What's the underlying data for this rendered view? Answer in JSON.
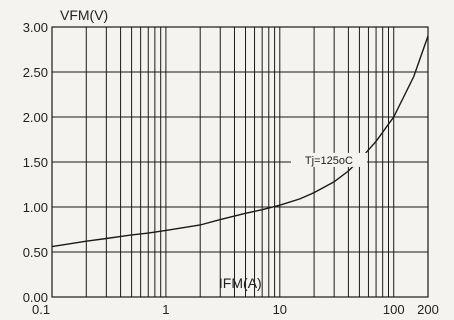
{
  "chart_data": {
    "type": "line",
    "x_scale": "log",
    "xlim": [
      0.1,
      200
    ],
    "ylim": [
      0.0,
      3.0
    ],
    "grid": true,
    "ylabel": "VFM(V)",
    "xlabel": "IFM(A)",
    "x_ticks": [
      0.1,
      1,
      10,
      100,
      200
    ],
    "x_tick_labels": [
      "0.1",
      "1",
      "10",
      "100",
      "200"
    ],
    "y_ticks": [
      0.0,
      0.5,
      1.0,
      1.5,
      2.0,
      2.5,
      3.0
    ],
    "y_tick_labels": [
      "0.00",
      "0.50",
      "1.00",
      "1.50",
      "2.00",
      "2.50",
      "3.00"
    ],
    "series": [
      {
        "name": "Tj=125oC",
        "x": [
          0.1,
          0.2,
          0.3,
          0.5,
          0.7,
          1,
          2,
          3,
          5,
          7,
          10,
          15,
          20,
          30,
          40,
          50,
          70,
          100,
          150,
          200
        ],
        "y": [
          0.56,
          0.62,
          0.65,
          0.69,
          0.71,
          0.74,
          0.8,
          0.86,
          0.93,
          0.97,
          1.02,
          1.09,
          1.16,
          1.28,
          1.4,
          1.52,
          1.73,
          2.0,
          2.45,
          2.9
        ]
      }
    ],
    "annotations": [
      {
        "text": "Tj=125oC",
        "x": 27,
        "y": 1.49
      }
    ],
    "colors": {
      "line": "#1a1a1a",
      "grid": "#1a1a1a",
      "background": "#f4f3ef"
    }
  }
}
